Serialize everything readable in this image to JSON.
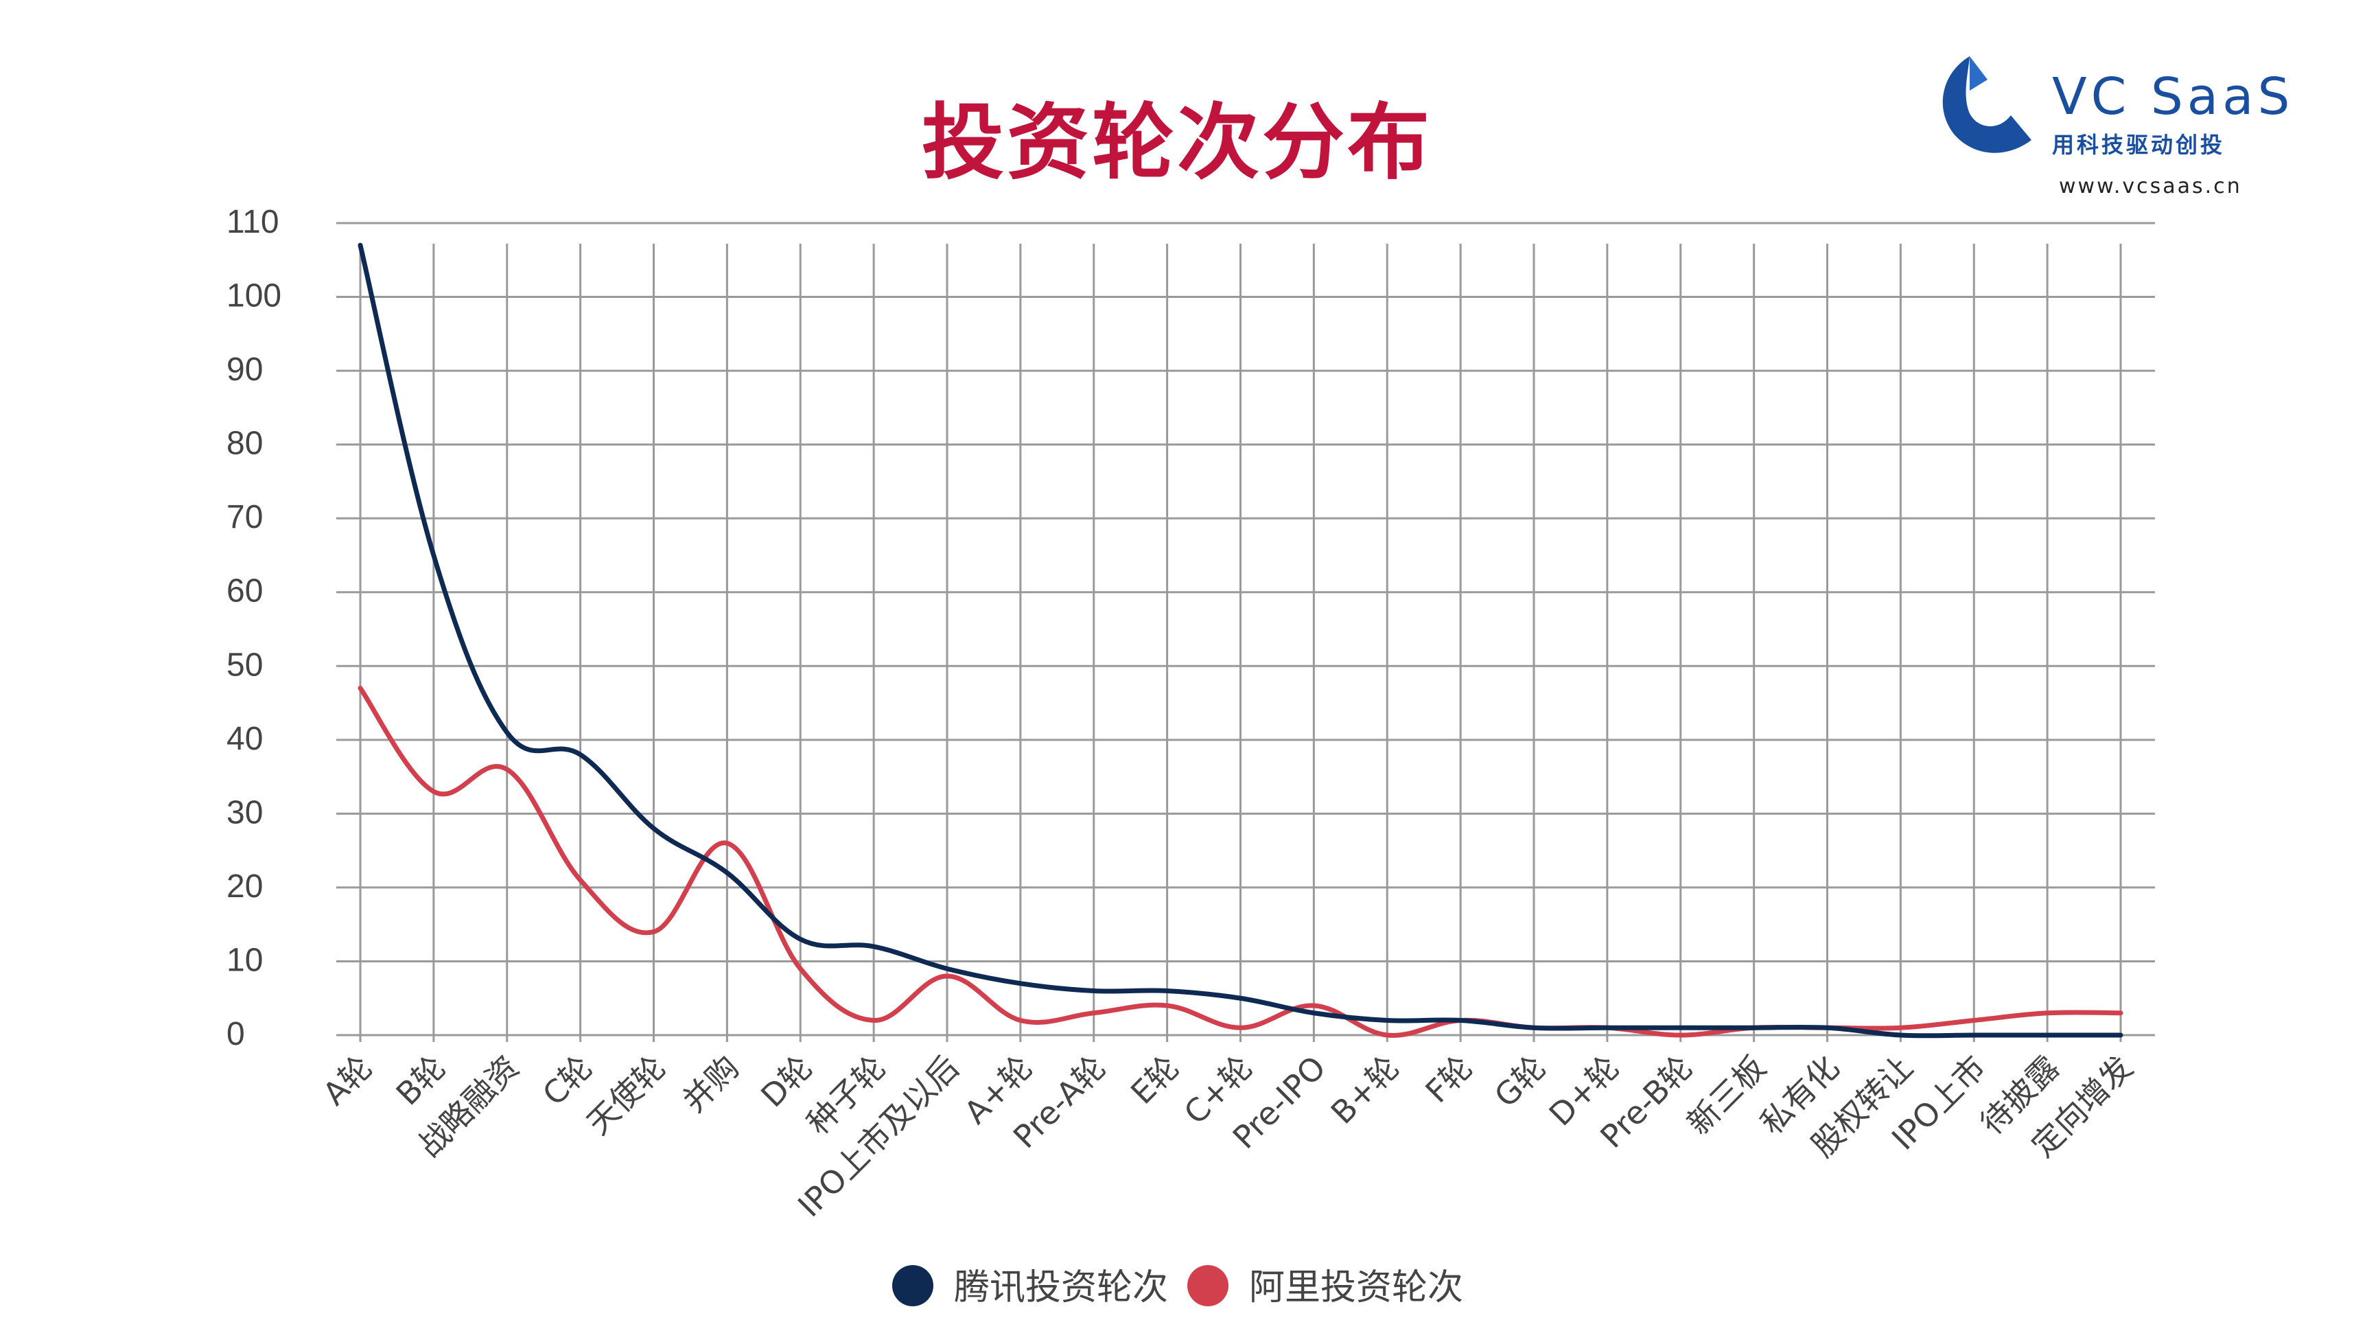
{
  "page": {
    "title": "投资轮次分布"
  },
  "logo": {
    "brand": "VC  SaaS",
    "slogan": "用科技驱动创投",
    "url": "www.vcsaas.cn",
    "icon": "vc-saas-logo-icon",
    "color": "#1a4fa0"
  },
  "chart_data": {
    "type": "line",
    "title": "投资轮次分布",
    "xlabel": "",
    "ylabel": "",
    "ylim": [
      0,
      110
    ],
    "yticks": [
      "0",
      "10",
      "20",
      "30",
      "40",
      "50",
      "60",
      "70",
      "80",
      "90",
      "100",
      "110"
    ],
    "grid": true,
    "legend_position": "bottom",
    "categories": [
      "A轮",
      "B轮",
      "战略融资",
      "C轮",
      "天使轮",
      "并购",
      "D轮",
      "种子轮",
      "IPO上市及以后",
      "A+轮",
      "Pre-A轮",
      "E轮",
      "C+轮",
      "Pre-IPO",
      "B+轮",
      "F轮",
      "G轮",
      "D+轮",
      "Pre-B轮",
      "新三板",
      "私有化",
      "股权转让",
      "IPO上市",
      "待披露",
      "定向增发"
    ],
    "series": [
      {
        "name": "腾讯投资轮次",
        "color": "#0e2a52",
        "values": [
          107,
          65,
          41,
          38,
          28,
          22,
          13,
          12,
          9,
          7,
          6,
          6,
          5,
          3,
          2,
          2,
          1,
          1,
          1,
          1,
          1,
          0,
          0,
          0,
          0
        ]
      },
      {
        "name": "阿里投资轮次",
        "color": "#d2404e",
        "values": [
          47,
          33,
          36,
          21,
          14,
          26,
          9,
          2,
          8,
          2,
          3,
          4,
          1,
          4,
          0,
          2,
          1,
          1,
          0,
          1,
          1,
          1,
          2,
          3,
          3
        ]
      }
    ]
  }
}
